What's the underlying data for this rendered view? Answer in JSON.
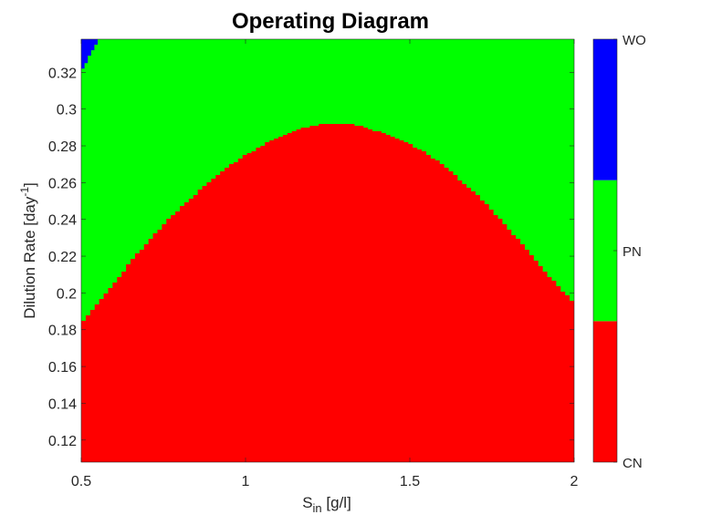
{
  "chart_data": {
    "type": "heatmap",
    "title": "Operating Diagram",
    "xlabel": {
      "main": "S",
      "sub": "in",
      "rest": " [g/l]"
    },
    "ylabel": {
      "main": "Dilution Rate [day",
      "sup": "-1",
      "rest": "]"
    },
    "xlim": [
      0.5,
      2.0
    ],
    "ylim": [
      0.108,
      0.338
    ],
    "x_ticks": [
      0.5,
      1.0,
      1.5,
      2.0
    ],
    "x_tick_labels": [
      "0.5",
      "1",
      "1.5",
      "2"
    ],
    "y_ticks": [
      0.12,
      0.14,
      0.16,
      0.18,
      0.2,
      0.22,
      0.24,
      0.26,
      0.28,
      0.3,
      0.32
    ],
    "y_tick_labels": [
      "0.12",
      "0.14",
      "0.16",
      "0.18",
      "0.2",
      "0.22",
      "0.24",
      "0.26",
      "0.28",
      "0.3",
      "0.32"
    ],
    "grid": false,
    "regions": [
      {
        "label": "CN",
        "color": "#ff0000"
      },
      {
        "label": "PN",
        "color": "#00ff00"
      },
      {
        "label": "WO",
        "color": "#0000ff"
      }
    ],
    "boundary_CN_PN": {
      "description": "upper boundary of CN region (dilution rate) as function of S_in",
      "x": [
        0.5,
        0.55,
        0.6,
        0.65,
        0.7,
        0.75,
        0.8,
        0.85,
        0.9,
        0.95,
        1.0,
        1.05,
        1.1,
        1.15,
        1.2,
        1.25,
        1.3,
        1.35,
        1.4,
        1.45,
        1.5,
        1.55,
        1.6,
        1.65,
        1.7,
        1.75,
        1.8,
        1.85,
        1.9,
        1.95,
        2.0
      ],
      "y": [
        0.183,
        0.194,
        0.205,
        0.217,
        0.227,
        0.237,
        0.246,
        0.254,
        0.262,
        0.269,
        0.275,
        0.28,
        0.285,
        0.288,
        0.291,
        0.292,
        0.292,
        0.291,
        0.288,
        0.285,
        0.281,
        0.276,
        0.27,
        0.262,
        0.254,
        0.245,
        0.235,
        0.225,
        0.214,
        0.204,
        0.195
      ]
    },
    "boundary_PN_WO": {
      "description": "lower boundary of WO region near top-left corner",
      "x": [
        0.5,
        0.51,
        0.52,
        0.53,
        0.54,
        0.55,
        0.555
      ],
      "y": [
        0.322,
        0.325,
        0.329,
        0.332,
        0.335,
        0.338,
        0.338
      ]
    },
    "colorbar": {
      "ticks": [
        "CN",
        "PN",
        "WO"
      ],
      "position": "right"
    }
  }
}
